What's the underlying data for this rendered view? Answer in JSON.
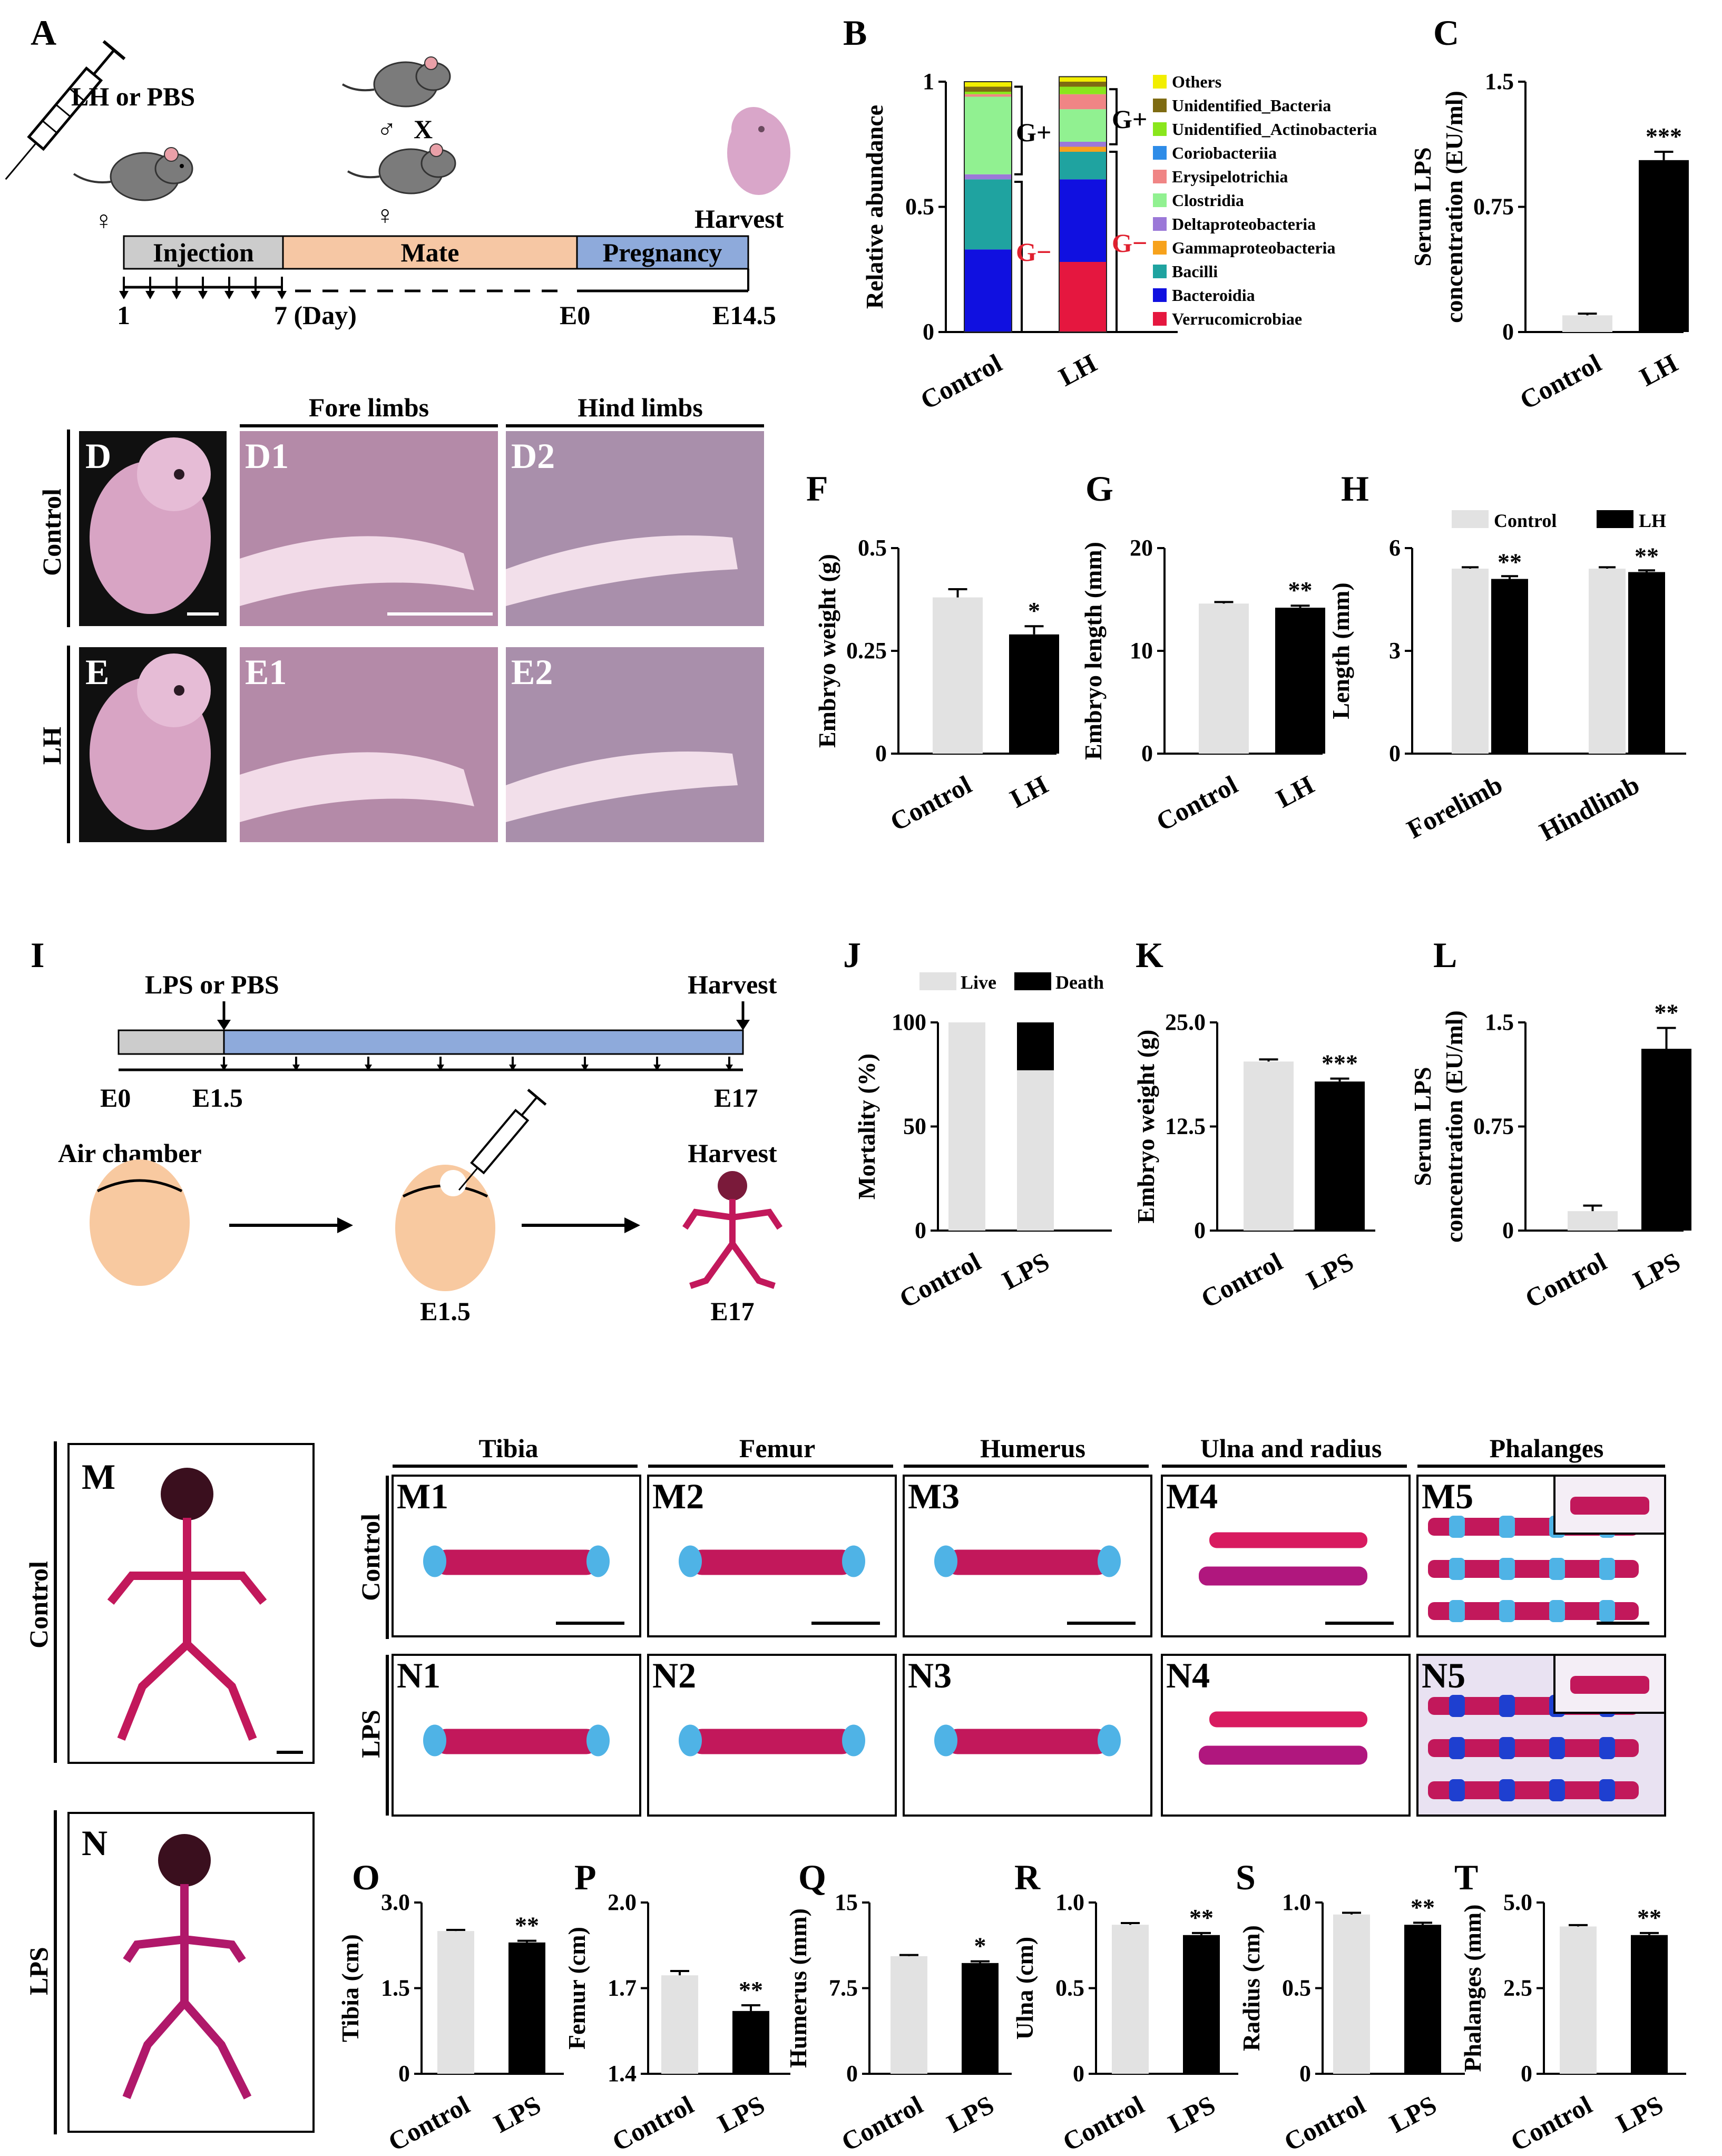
{
  "panels": {
    "A": {
      "letter": "A",
      "treatment": "LH or PBS",
      "female": "♀",
      "male": "♂",
      "cross": "X",
      "harvest": "Harvest",
      "stage_injection": "Injection",
      "stage_mate": "Mate",
      "stage_pregnancy": "Pregnancy",
      "day1": "1",
      "day7": "7 (Day)",
      "e0": "E0",
      "e145": "E14.5"
    },
    "B": {
      "letter": "B",
      "gpos": "G+",
      "gneg": "G−"
    },
    "C": {
      "letter": "C"
    },
    "D": {
      "fore": "Fore limbs",
      "hind": "Hind limbs",
      "control": "Control",
      "lh": "LH",
      "D": "D",
      "D1": "D1",
      "D2": "D2",
      "E": "E",
      "E1": "E1",
      "E2": "E2"
    },
    "F": {
      "letter": "F"
    },
    "G": {
      "letter": "G"
    },
    "H": {
      "letter": "H"
    },
    "I": {
      "letter": "I",
      "treatment": "LPS or PBS",
      "harvest": "Harvest",
      "e0": "E0",
      "e15": "E1.5",
      "e17": "E17",
      "air": "Air chamber",
      "harvest2": "Harvest",
      "egg_e15": "E1.5",
      "egg_e17": "E17"
    },
    "J": {
      "letter": "J"
    },
    "K": {
      "letter": "K"
    },
    "L": {
      "letter": "L"
    },
    "M": {
      "M": "M",
      "N": "N",
      "control": "Control",
      "lps": "LPS",
      "tibia": "Tibia",
      "femur": "Femur",
      "humerus": "Humerus",
      "ulna_radius": "Ulna and radius",
      "phalanges": "Phalanges",
      "M1": "M1",
      "M2": "M2",
      "M3": "M3",
      "M4": "M4",
      "M5": "M5",
      "N1": "N1",
      "N2": "N2",
      "N3": "N3",
      "N4": "N4",
      "N5": "N5"
    },
    "O": {
      "letter": "O"
    },
    "P": {
      "letter": "P"
    },
    "Q": {
      "letter": "Q"
    },
    "R": {
      "letter": "R"
    },
    "S": {
      "letter": "S"
    },
    "T": {
      "letter": "T"
    }
  },
  "colors": {
    "control": "#e2e2e2",
    "treated": "#000000",
    "timeline_gray": "#cccccc",
    "timeline_peach": "#f6c7a4",
    "timeline_blue": "#8eaadb",
    "egg": "#f8c9a0",
    "gneg_label": "#e0202f"
  },
  "chart_data": [
    {
      "id": "B",
      "type": "bar",
      "stacked": true,
      "ylabel": "Relative abundance",
      "categories": [
        "Control",
        "LH"
      ],
      "ylim": [
        0,
        1
      ],
      "yticks": [
        "0",
        "0.5",
        "1"
      ],
      "series": [
        {
          "name": "Verrucomicrobiae",
          "color": "#e5173f",
          "values": [
            0.0,
            0.28
          ]
        },
        {
          "name": "Bacteroidia",
          "color": "#1010e0",
          "values": [
            0.33,
            0.33
          ]
        },
        {
          "name": "Bacilli",
          "color": "#1fa3a0",
          "values": [
            0.28,
            0.11
          ]
        },
        {
          "name": "Gammaproteobacteria",
          "color": "#f7a21b",
          "values": [
            0.0,
            0.02
          ]
        },
        {
          "name": "Deltaproteobacteria",
          "color": "#9b78d8",
          "values": [
            0.02,
            0.02
          ]
        },
        {
          "name": "Clostridia",
          "color": "#91f191",
          "values": [
            0.31,
            0.13
          ]
        },
        {
          "name": "Erysipelotrichia",
          "color": "#f08585",
          "values": [
            0.01,
            0.06
          ]
        },
        {
          "name": "Coriobacteriia",
          "color": "#2e8ce8",
          "values": [
            0.0,
            0.0
          ]
        },
        {
          "name": "Unidentified_Actinobacteria",
          "color": "#8ae61c",
          "values": [
            0.01,
            0.03
          ]
        },
        {
          "name": "Unidentified_Bacteria",
          "color": "#7e6b12",
          "values": [
            0.02,
            0.02
          ]
        },
        {
          "name": "Others",
          "color": "#f2ee00",
          "values": [
            0.02,
            0.02
          ]
        }
      ]
    },
    {
      "id": "C",
      "type": "bar",
      "ylabel": "Serum LPS concentration (EU/ml)",
      "categories": [
        "Control",
        "LH"
      ],
      "values": [
        0.1,
        1.03
      ],
      "errors": [
        0.01,
        0.05
      ],
      "ylim": [
        0,
        1.5
      ],
      "yticks": [
        "0",
        "0.75",
        "1.5"
      ],
      "sig": [
        "",
        "***"
      ]
    },
    {
      "id": "F",
      "type": "bar",
      "ylabel": "Embryo weight (g)",
      "categories": [
        "Control",
        "LH"
      ],
      "values": [
        0.38,
        0.29
      ],
      "errors": [
        0.02,
        0.02
      ],
      "ylim": [
        0,
        0.5
      ],
      "yticks": [
        "0",
        "0.25",
        "0.5"
      ],
      "sig": [
        "",
        "*"
      ]
    },
    {
      "id": "G",
      "type": "bar",
      "ylabel": "Embryo length (mm)",
      "categories": [
        "Control",
        "LH"
      ],
      "values": [
        14.6,
        14.2
      ],
      "errors": [
        0.15,
        0.2
      ],
      "ylim": [
        0,
        20
      ],
      "yticks": [
        "0",
        "10",
        "20"
      ],
      "sig": [
        "",
        "**"
      ]
    },
    {
      "id": "H",
      "type": "bar",
      "ylabel": "Length (mm)",
      "categories": [
        "Forelimb",
        "Hindlimb"
      ],
      "series": [
        {
          "name": "Control",
          "values": [
            5.4,
            5.4
          ],
          "errors": [
            0.04,
            0.04
          ]
        },
        {
          "name": "LH",
          "values": [
            5.1,
            5.3
          ],
          "errors": [
            0.08,
            0.05
          ]
        }
      ],
      "ylim": [
        0,
        6
      ],
      "yticks": [
        "0",
        "3",
        "6"
      ],
      "sig": [
        [
          "",
          "**"
        ],
        [
          "",
          "**"
        ]
      ]
    },
    {
      "id": "J",
      "type": "bar",
      "stacked": true,
      "ylabel": "Mortality (%)",
      "categories": [
        "Control",
        "LPS"
      ],
      "series": [
        {
          "name": "Live",
          "values": [
            100,
            77
          ]
        },
        {
          "name": "Death",
          "values": [
            0,
            23
          ]
        }
      ],
      "ylim": [
        0,
        100
      ],
      "yticks": [
        "0",
        "50",
        "100"
      ]
    },
    {
      "id": "K",
      "type": "bar",
      "ylabel": "Embryo  weight (g)",
      "categories": [
        "Control",
        "LPS"
      ],
      "values": [
        20.3,
        17.9
      ],
      "errors": [
        0.25,
        0.35
      ],
      "ylim": [
        0,
        25
      ],
      "yticks": [
        "0",
        "12.5",
        "25.0"
      ],
      "sig": [
        "",
        "***"
      ]
    },
    {
      "id": "L",
      "type": "bar",
      "ylabel": "Serum LPS concentration (EU/ml)",
      "categories": [
        "Control",
        "LPS"
      ],
      "values": [
        0.14,
        1.31
      ],
      "errors": [
        0.04,
        0.15
      ],
      "ylim": [
        0,
        1.5
      ],
      "yticks": [
        "0",
        "0.75",
        "1.5"
      ],
      "sig": [
        "",
        "**"
      ]
    },
    {
      "id": "O",
      "type": "bar",
      "ylabel": "Tibia (cm)",
      "categories": [
        "Control",
        "LPS"
      ],
      "values": [
        2.5,
        2.3
      ],
      "errors": [
        0.02,
        0.03
      ],
      "ylim": [
        0,
        3.0
      ],
      "yticks": [
        "0",
        "1.5",
        "3.0"
      ],
      "sig": [
        "",
        "**"
      ]
    },
    {
      "id": "P",
      "type": "bar",
      "ylabel": "Femur (cm)",
      "categories": [
        "Control",
        "LPS"
      ],
      "values": [
        1.745,
        1.62
      ],
      "errors": [
        0.015,
        0.02
      ],
      "ylim": [
        1.4,
        2.0
      ],
      "yticks": [
        "1.4",
        "1.7",
        "2.0"
      ],
      "sig": [
        "",
        "**"
      ]
    },
    {
      "id": "Q",
      "type": "bar",
      "ylabel": "Humerus (mm)",
      "categories": [
        "Control",
        "LPS"
      ],
      "values": [
        10.3,
        9.7
      ],
      "errors": [
        0.1,
        0.15
      ],
      "ylim": [
        0,
        15
      ],
      "yticks": [
        "0",
        "7.5",
        "15"
      ],
      "sig": [
        "",
        "*"
      ]
    },
    {
      "id": "R",
      "type": "bar",
      "ylabel": "Ulna (cm)",
      "categories": [
        "Control",
        "LPS"
      ],
      "values": [
        0.87,
        0.81
      ],
      "errors": [
        0.01,
        0.012
      ],
      "ylim": [
        0,
        1.0
      ],
      "yticks": [
        "0",
        "0.5",
        "1.0"
      ],
      "sig": [
        "",
        "**"
      ]
    },
    {
      "id": "S",
      "type": "bar",
      "ylabel": "Radius (cm)",
      "categories": [
        "Control",
        "LPS"
      ],
      "values": [
        0.93,
        0.87
      ],
      "errors": [
        0.01,
        0.012
      ],
      "ylim": [
        0,
        1.0
      ],
      "yticks": [
        "0",
        "0.5",
        "1.0"
      ],
      "sig": [
        "",
        "**"
      ]
    },
    {
      "id": "T",
      "type": "bar",
      "ylabel": "Phalanges (mm)",
      "categories": [
        "Control",
        "LPS"
      ],
      "values": [
        4.3,
        4.05
      ],
      "errors": [
        0.04,
        0.06
      ],
      "ylim": [
        0,
        5.0
      ],
      "yticks": [
        "0",
        "2.5",
        "5.0"
      ],
      "sig": [
        "",
        "**"
      ]
    }
  ]
}
